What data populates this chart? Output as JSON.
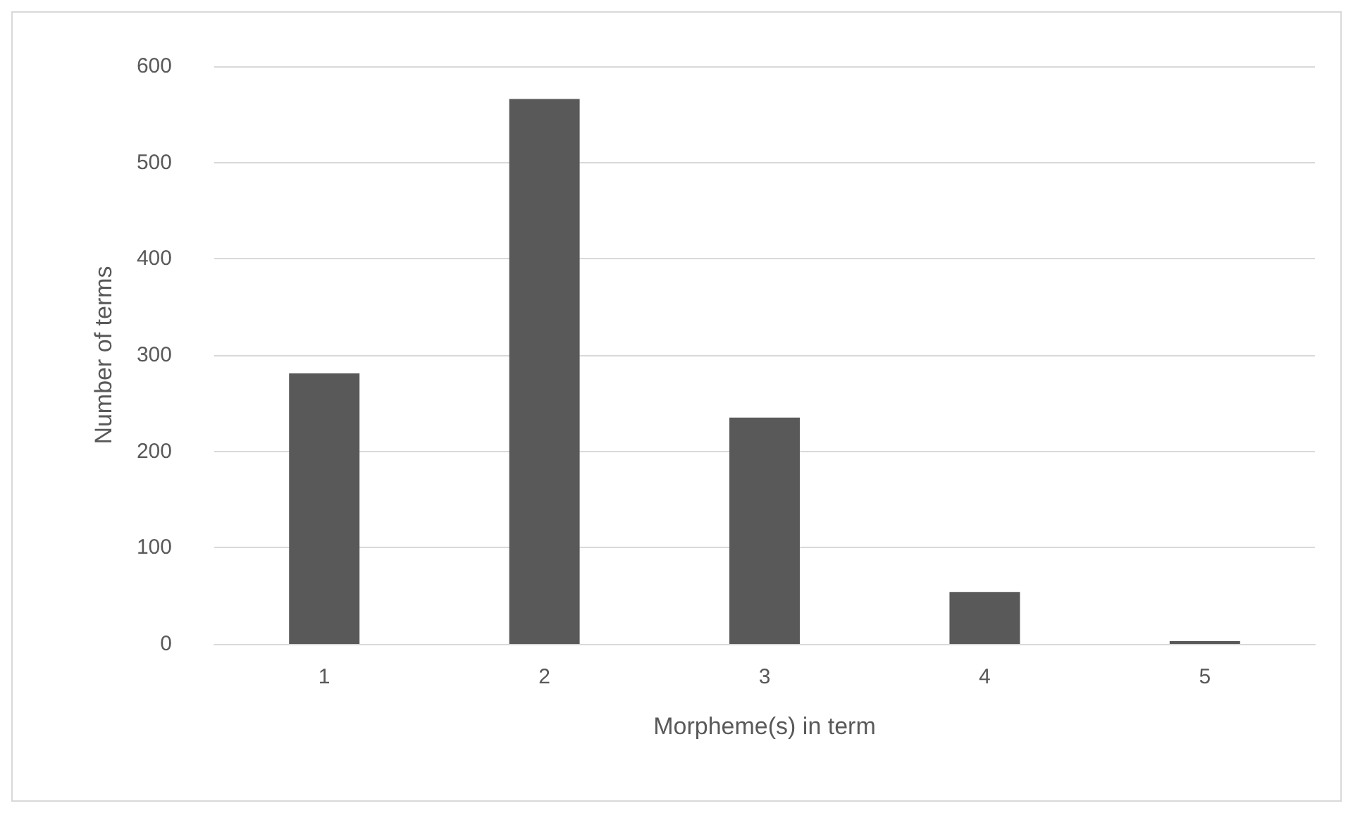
{
  "chart_data": {
    "type": "bar",
    "xlabel": "Morpheme(s) in term",
    "ylabel": "Number of terms",
    "categories": [
      "1",
      "2",
      "3",
      "4",
      "5"
    ],
    "series": [
      {
        "color": "#595959",
        "values": [
          281,
          566,
          235,
          54,
          3
        ]
      }
    ],
    "ylim": [
      0,
      600
    ],
    "yticks": [
      0,
      100,
      200,
      300,
      400,
      500,
      600
    ],
    "grid": "y"
  }
}
